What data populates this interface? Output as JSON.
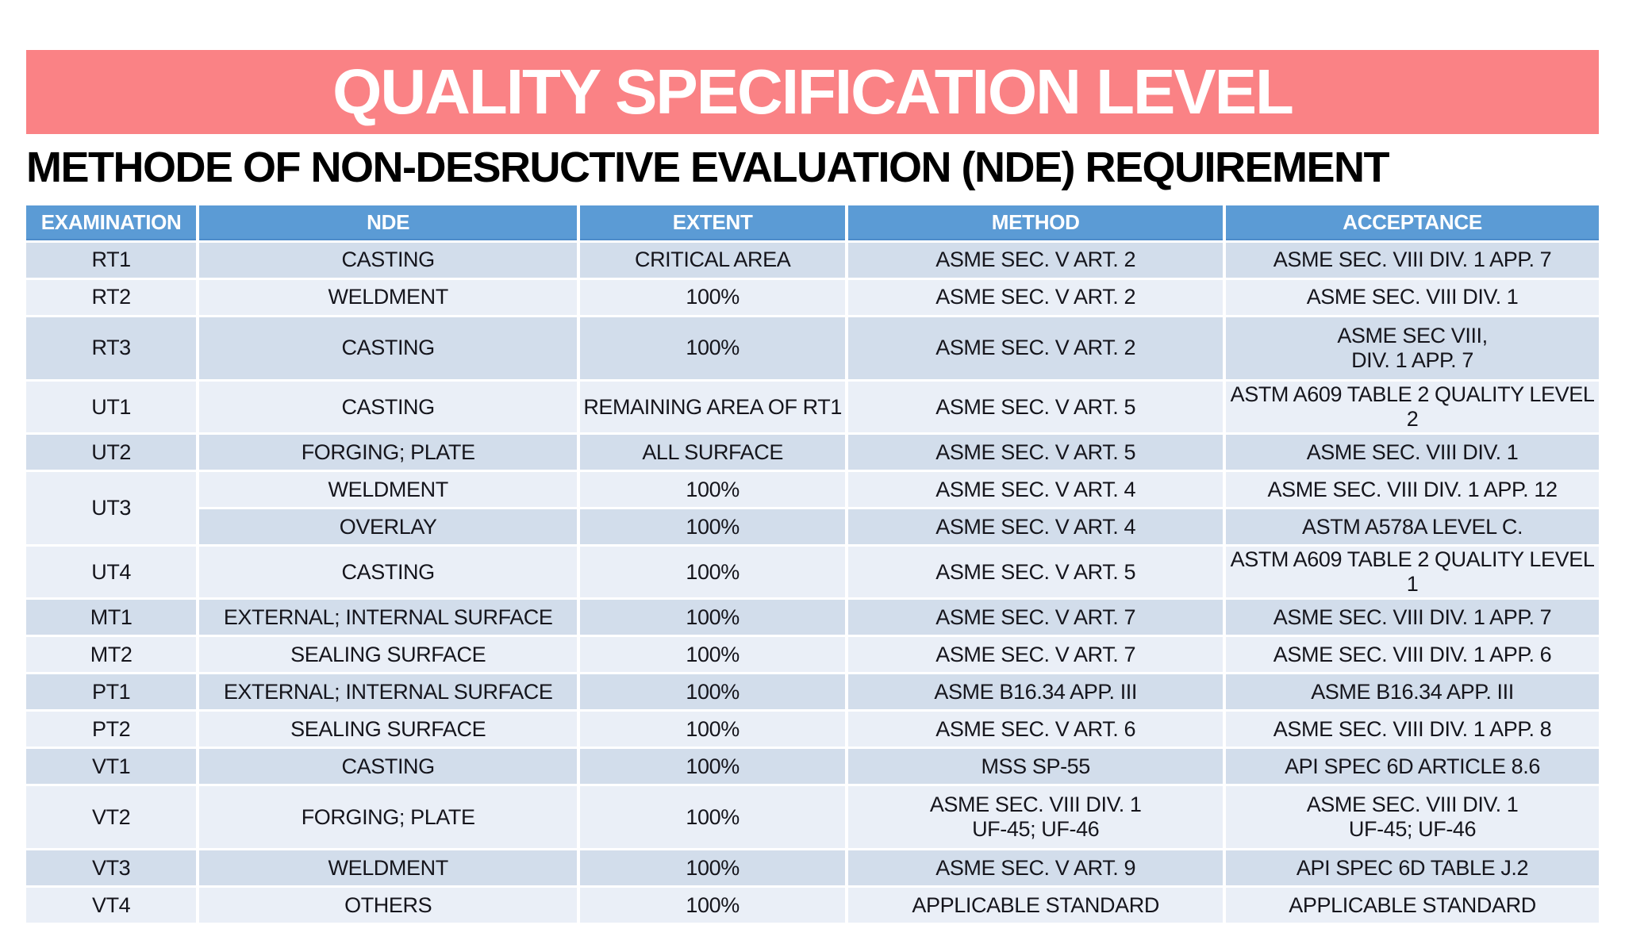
{
  "banner": {
    "title": "QUALITY SPECIFICATION LEVEL",
    "background_color": "#FA8285",
    "text_color": "#ffffff"
  },
  "subtitle": "METHODE OF NON-DESRUCTIVE EVALUATION (NDE) REQUIREMENT",
  "table": {
    "header_color": "#5B9BD5",
    "row_color_dark": "#D2DDEB",
    "row_color_light": "#EAEFF7",
    "columns": [
      "EXAMINATION",
      "NDE",
      "EXTENT",
      "METHOD",
      "ACCEPTANCE"
    ],
    "rows": [
      {
        "exam": "RT1",
        "nde": "CASTING",
        "extent": "CRITICAL AREA",
        "method": "ASME SEC. V ART. 2",
        "acceptance": "ASME SEC. VIII DIV. 1 APP. 7"
      },
      {
        "exam": "RT2",
        "nde": "WELDMENT",
        "extent": "100%",
        "method": "ASME SEC. V ART. 2",
        "acceptance": "ASME  SEC. VIII DIV. 1"
      },
      {
        "exam": "RT3",
        "nde": "CASTING",
        "extent": "100%",
        "method": "ASME SEC. V ART. 2",
        "acceptance": "ASME SEC VIII,\nDIV. 1 APP. 7"
      },
      {
        "exam": "UT1",
        "nde": "CASTING",
        "extent": "REMAINING AREA OF RT1",
        "method": "ASME SEC. V ART. 5",
        "acceptance": "ASTM A609 TABLE 2 QUALITY LEVEL 2"
      },
      {
        "exam": "UT2",
        "nde": "FORGING; PLATE",
        "extent": "ALL SURFACE",
        "method": "ASME SEC. V ART. 5",
        "acceptance": "ASME  SEC. VIII DIV. 1"
      },
      {
        "exam": "UT3",
        "nde": "WELDMENT",
        "extent": "100%",
        "method": "ASME SEC. V ART. 4",
        "acceptance": "ASME SEC. VIII DIV. 1 APP. 12"
      },
      {
        "nde": "OVERLAY",
        "extent": "100%",
        "method": "ASME SEC. V ART. 4",
        "acceptance": "ASTM A578A LEVEL C."
      },
      {
        "exam": "UT4",
        "nde": "CASTING",
        "extent": "100%",
        "method": "ASME SEC. V ART. 5",
        "acceptance": "ASTM A609 TABLE 2 QUALITY LEVEL 1"
      },
      {
        "exam": "MT1",
        "nde": "EXTERNAL; INTERNAL SURFACE",
        "extent": "100%",
        "method": "ASME SEC. V ART. 7",
        "acceptance": "ASME SEC. VIII DIV. 1 APP. 7"
      },
      {
        "exam": "MT2",
        "nde": "SEALING SURFACE",
        "extent": "100%",
        "method": "ASME SEC. V ART. 7",
        "acceptance": "ASME SEC. VIII DIV. 1 APP. 6"
      },
      {
        "exam": "PT1",
        "nde": "EXTERNAL; INTERNAL SURFACE",
        "extent": "100%",
        "method": "ASME B16.34 APP. III",
        "acceptance": "ASME B16.34 APP. III"
      },
      {
        "exam": "PT2",
        "nde": "SEALING SURFACE",
        "extent": "100%",
        "method": "ASME SEC. V ART. 6",
        "acceptance": "ASME SEC. VIII DIV. 1 APP. 8"
      },
      {
        "exam": "VT1",
        "nde": "CASTING",
        "extent": "100%",
        "method": "MSS SP-55",
        "acceptance": "API SPEC 6D ARTICLE 8.6"
      },
      {
        "exam": "VT2",
        "nde": "FORGING; PLATE",
        "extent": "100%",
        "method": "ASME SEC. VIII DIV. 1\nUF-45; UF-46",
        "acceptance": "ASME SEC. VIII DIV. 1\nUF-45; UF-46"
      },
      {
        "exam": "VT3",
        "nde": "WELDMENT",
        "extent": "100%",
        "method": "ASME SEC. V ART. 9",
        "acceptance": "API SPEC 6D TABLE J.2"
      },
      {
        "exam": "VT4",
        "nde": "OTHERS",
        "extent": "100%",
        "method": "APPLICABLE STANDARD",
        "acceptance": "APPLICABLE STANDARD"
      }
    ]
  }
}
